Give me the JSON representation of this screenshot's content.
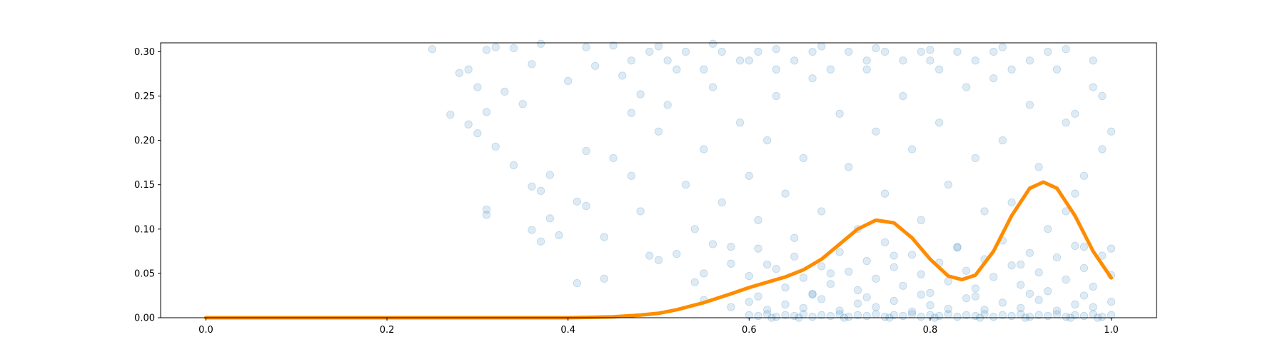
{
  "chart_data": {
    "type": "scatter",
    "title": "",
    "xlabel": "",
    "ylabel": "",
    "xlim": [
      -0.05,
      1.05
    ],
    "ylim": [
      0.0,
      0.31
    ],
    "x_ticks": [
      {
        "value": 0.0,
        "label": "0.0"
      },
      {
        "value": 0.2,
        "label": "0.2"
      },
      {
        "value": 0.4,
        "label": "0.4"
      },
      {
        "value": 0.6,
        "label": "0.6"
      },
      {
        "value": 0.8,
        "label": "0.8"
      },
      {
        "value": 1.0,
        "label": "1.0"
      }
    ],
    "y_ticks": [
      {
        "value": 0.0,
        "label": "0.00"
      },
      {
        "value": 0.05,
        "label": "0.05"
      },
      {
        "value": 0.1,
        "label": "0.10"
      },
      {
        "value": 0.15,
        "label": "0.15"
      },
      {
        "value": 0.2,
        "label": "0.20"
      },
      {
        "value": 0.25,
        "label": "0.25"
      },
      {
        "value": 0.3,
        "label": "0.30"
      }
    ],
    "grid": false,
    "legend": "none",
    "series": [
      {
        "kind": "scatter",
        "color": "#1f77b4",
        "opacity": 0.15,
        "points": [
          [
            0.25,
            0.303
          ],
          [
            0.28,
            0.276
          ],
          [
            0.29,
            0.28
          ],
          [
            0.31,
            0.302
          ],
          [
            0.32,
            0.305
          ],
          [
            0.34,
            0.304
          ],
          [
            0.37,
            0.309
          ],
          [
            0.42,
            0.305
          ],
          [
            0.45,
            0.307
          ],
          [
            0.5,
            0.306
          ],
          [
            0.56,
            0.309
          ],
          [
            0.63,
            0.303
          ],
          [
            0.68,
            0.306
          ],
          [
            0.74,
            0.304
          ],
          [
            0.8,
            0.302
          ],
          [
            0.88,
            0.305
          ],
          [
            0.95,
            0.303
          ],
          [
            0.27,
            0.229
          ],
          [
            0.3,
            0.26
          ],
          [
            0.31,
            0.232
          ],
          [
            0.33,
            0.255
          ],
          [
            0.35,
            0.241
          ],
          [
            0.36,
            0.286
          ],
          [
            0.29,
            0.218
          ],
          [
            0.3,
            0.208
          ],
          [
            0.32,
            0.193
          ],
          [
            0.34,
            0.172
          ],
          [
            0.36,
            0.148
          ],
          [
            0.37,
            0.143
          ],
          [
            0.38,
            0.161
          ],
          [
            0.36,
            0.099
          ],
          [
            0.37,
            0.086
          ],
          [
            0.31,
            0.116
          ],
          [
            0.31,
            0.122
          ],
          [
            0.38,
            0.112
          ],
          [
            0.39,
            0.093
          ],
          [
            0.41,
            0.131
          ],
          [
            0.42,
            0.126
          ],
          [
            0.44,
            0.091
          ],
          [
            0.44,
            0.044
          ],
          [
            0.41,
            0.039
          ],
          [
            0.42,
            0.188
          ],
          [
            0.4,
            0.267
          ],
          [
            0.43,
            0.284
          ],
          [
            0.46,
            0.273
          ],
          [
            0.48,
            0.252
          ],
          [
            0.47,
            0.231
          ],
          [
            0.45,
            0.18
          ],
          [
            0.47,
            0.16
          ],
          [
            0.48,
            0.12
          ],
          [
            0.49,
            0.07
          ],
          [
            0.5,
            0.21
          ],
          [
            0.51,
            0.24
          ],
          [
            0.52,
            0.28
          ],
          [
            0.53,
            0.15
          ],
          [
            0.54,
            0.1
          ],
          [
            0.55,
            0.05
          ],
          [
            0.55,
            0.19
          ],
          [
            0.56,
            0.26
          ],
          [
            0.57,
            0.13
          ],
          [
            0.58,
            0.08
          ],
          [
            0.59,
            0.22
          ],
          [
            0.6,
            0.29
          ],
          [
            0.6,
            0.16
          ],
          [
            0.61,
            0.11
          ],
          [
            0.62,
            0.06
          ],
          [
            0.62,
            0.2
          ],
          [
            0.63,
            0.25
          ],
          [
            0.64,
            0.14
          ],
          [
            0.65,
            0.09
          ],
          [
            0.66,
            0.18
          ],
          [
            0.67,
            0.27
          ],
          [
            0.68,
            0.12
          ],
          [
            0.69,
            0.05
          ],
          [
            0.7,
            0.23
          ],
          [
            0.71,
            0.17
          ],
          [
            0.72,
            0.1
          ],
          [
            0.73,
            0.28
          ],
          [
            0.74,
            0.21
          ],
          [
            0.75,
            0.14
          ],
          [
            0.76,
            0.07
          ],
          [
            0.77,
            0.25
          ],
          [
            0.78,
            0.19
          ],
          [
            0.79,
            0.11
          ],
          [
            0.8,
            0.29
          ],
          [
            0.81,
            0.22
          ],
          [
            0.82,
            0.15
          ],
          [
            0.83,
            0.08
          ],
          [
            0.84,
            0.26
          ],
          [
            0.85,
            0.18
          ],
          [
            0.86,
            0.12
          ],
          [
            0.87,
            0.27
          ],
          [
            0.88,
            0.2
          ],
          [
            0.89,
            0.13
          ],
          [
            0.9,
            0.06
          ],
          [
            0.91,
            0.24
          ],
          [
            0.92,
            0.17
          ],
          [
            0.93,
            0.1
          ],
          [
            0.94,
            0.28
          ],
          [
            0.95,
            0.22
          ],
          [
            0.96,
            0.14
          ],
          [
            0.97,
            0.08
          ],
          [
            0.98,
            0.26
          ],
          [
            0.99,
            0.19
          ],
          [
            1.0,
            0.21
          ],
          [
            0.99,
            0.25
          ],
          [
            0.98,
            0.29
          ],
          [
            0.97,
            0.16
          ],
          [
            0.96,
            0.23
          ],
          [
            0.95,
            0.12
          ],
          [
            0.93,
            0.3
          ],
          [
            0.91,
            0.29
          ],
          [
            0.89,
            0.28
          ],
          [
            0.87,
            0.3
          ],
          [
            0.85,
            0.29
          ],
          [
            0.83,
            0.3
          ],
          [
            0.81,
            0.28
          ],
          [
            0.79,
            0.3
          ],
          [
            0.77,
            0.29
          ],
          [
            0.75,
            0.3
          ],
          [
            0.73,
            0.29
          ],
          [
            0.71,
            0.3
          ],
          [
            0.69,
            0.28
          ],
          [
            0.67,
            0.3
          ],
          [
            0.65,
            0.29
          ],
          [
            0.63,
            0.28
          ],
          [
            0.61,
            0.3
          ],
          [
            0.59,
            0.29
          ],
          [
            0.57,
            0.3
          ],
          [
            0.55,
            0.28
          ],
          [
            0.53,
            0.3
          ],
          [
            0.51,
            0.29
          ],
          [
            0.49,
            0.3
          ],
          [
            0.47,
            0.29
          ],
          [
            0.5,
            0.065
          ],
          [
            0.52,
            0.072
          ],
          [
            0.54,
            0.04
          ],
          [
            0.56,
            0.083
          ],
          [
            0.58,
            0.061
          ],
          [
            0.6,
            0.047
          ],
          [
            0.61,
            0.078
          ],
          [
            0.63,
            0.055
          ],
          [
            0.64,
            0.034
          ],
          [
            0.65,
            0.069
          ],
          [
            0.66,
            0.045
          ],
          [
            0.67,
            0.026
          ],
          [
            0.68,
            0.058
          ],
          [
            0.69,
            0.038
          ],
          [
            0.7,
            0.074
          ],
          [
            0.71,
            0.052
          ],
          [
            0.72,
            0.031
          ],
          [
            0.73,
            0.064
          ],
          [
            0.74,
            0.044
          ],
          [
            0.75,
            0.085
          ],
          [
            0.76,
            0.057
          ],
          [
            0.77,
            0.036
          ],
          [
            0.78,
            0.071
          ],
          [
            0.79,
            0.049
          ],
          [
            0.8,
            0.028
          ],
          [
            0.81,
            0.062
          ],
          [
            0.82,
            0.041
          ],
          [
            0.83,
            0.079
          ],
          [
            0.84,
            0.053
          ],
          [
            0.85,
            0.033
          ],
          [
            0.86,
            0.066
          ],
          [
            0.87,
            0.046
          ],
          [
            0.88,
            0.087
          ],
          [
            0.89,
            0.059
          ],
          [
            0.9,
            0.037
          ],
          [
            0.91,
            0.073
          ],
          [
            0.92,
            0.051
          ],
          [
            0.93,
            0.03
          ],
          [
            0.94,
            0.068
          ],
          [
            0.95,
            0.043
          ],
          [
            0.96,
            0.081
          ],
          [
            0.97,
            0.056
          ],
          [
            0.98,
            0.035
          ],
          [
            0.99,
            0.07
          ],
          [
            1.0,
            0.048
          ],
          [
            1.0,
            0.078
          ],
          [
            0.55,
            0.02
          ],
          [
            0.58,
            0.012
          ],
          [
            0.6,
            0.018
          ],
          [
            0.62,
            0.009
          ],
          [
            0.64,
            0.015
          ],
          [
            0.66,
            0.011
          ],
          [
            0.68,
            0.021
          ],
          [
            0.7,
            0.008
          ],
          [
            0.72,
            0.016
          ],
          [
            0.74,
            0.012
          ],
          [
            0.76,
            0.019
          ],
          [
            0.78,
            0.007
          ],
          [
            0.8,
            0.014
          ],
          [
            0.82,
            0.01
          ],
          [
            0.84,
            0.022
          ],
          [
            0.86,
            0.009
          ],
          [
            0.88,
            0.017
          ],
          [
            0.9,
            0.011
          ],
          [
            0.92,
            0.02
          ],
          [
            0.94,
            0.008
          ],
          [
            0.96,
            0.015
          ],
          [
            0.98,
            0.012
          ],
          [
            1.0,
            0.018
          ],
          [
            0.61,
            0.024
          ],
          [
            0.67,
            0.027
          ],
          [
            0.73,
            0.023
          ],
          [
            0.79,
            0.026
          ],
          [
            0.85,
            0.024
          ],
          [
            0.91,
            0.027
          ],
          [
            0.97,
            0.025
          ],
          [
            0.6,
            0.003
          ],
          [
            0.61,
            0.002
          ],
          [
            0.62,
            0.004
          ],
          [
            0.63,
            0.001
          ],
          [
            0.64,
            0.003
          ],
          [
            0.65,
            0.002
          ],
          [
            0.66,
            0.004
          ],
          [
            0.67,
            0.001
          ],
          [
            0.68,
            0.003
          ],
          [
            0.69,
            0.002
          ],
          [
            0.7,
            0.004
          ],
          [
            0.71,
            0.001
          ],
          [
            0.72,
            0.003
          ],
          [
            0.73,
            0.002
          ],
          [
            0.74,
            0.004
          ],
          [
            0.75,
            0.001
          ],
          [
            0.76,
            0.003
          ],
          [
            0.77,
            0.002
          ],
          [
            0.78,
            0.004
          ],
          [
            0.79,
            0.001
          ],
          [
            0.8,
            0.003
          ],
          [
            0.81,
            0.002
          ],
          [
            0.82,
            0.004
          ],
          [
            0.83,
            0.001
          ],
          [
            0.84,
            0.003
          ],
          [
            0.85,
            0.002
          ],
          [
            0.86,
            0.004
          ],
          [
            0.87,
            0.001
          ],
          [
            0.88,
            0.003
          ],
          [
            0.89,
            0.002
          ],
          [
            0.9,
            0.004
          ],
          [
            0.91,
            0.001
          ],
          [
            0.92,
            0.003
          ],
          [
            0.93,
            0.002
          ],
          [
            0.94,
            0.004
          ],
          [
            0.95,
            0.001
          ],
          [
            0.96,
            0.003
          ],
          [
            0.97,
            0.002
          ],
          [
            0.98,
            0.004
          ],
          [
            0.99,
            0.001
          ],
          [
            1.0,
            0.003
          ],
          [
            0.625,
            0.0
          ],
          [
            0.655,
            0.0
          ],
          [
            0.705,
            0.0
          ],
          [
            0.755,
            0.0
          ],
          [
            0.805,
            0.0
          ],
          [
            0.855,
            0.0
          ],
          [
            0.905,
            0.0
          ],
          [
            0.955,
            0.0
          ],
          [
            0.985,
            0.0
          ]
        ]
      },
      {
        "kind": "line",
        "color": "#ff8c00",
        "points": [
          [
            0.0,
            0.0
          ],
          [
            0.1,
            0.0
          ],
          [
            0.2,
            0.0
          ],
          [
            0.3,
            0.0
          ],
          [
            0.4,
            0.0
          ],
          [
            0.45,
            0.001
          ],
          [
            0.48,
            0.003
          ],
          [
            0.5,
            0.005
          ],
          [
            0.52,
            0.009
          ],
          [
            0.55,
            0.017
          ],
          [
            0.58,
            0.027
          ],
          [
            0.6,
            0.034
          ],
          [
            0.62,
            0.04
          ],
          [
            0.64,
            0.046
          ],
          [
            0.66,
            0.054
          ],
          [
            0.68,
            0.066
          ],
          [
            0.7,
            0.083
          ],
          [
            0.72,
            0.1
          ],
          [
            0.74,
            0.11
          ],
          [
            0.76,
            0.107
          ],
          [
            0.78,
            0.09
          ],
          [
            0.8,
            0.066
          ],
          [
            0.82,
            0.047
          ],
          [
            0.835,
            0.043
          ],
          [
            0.85,
            0.048
          ],
          [
            0.87,
            0.075
          ],
          [
            0.89,
            0.115
          ],
          [
            0.91,
            0.146
          ],
          [
            0.925,
            0.153
          ],
          [
            0.94,
            0.146
          ],
          [
            0.96,
            0.115
          ],
          [
            0.98,
            0.075
          ],
          [
            1.0,
            0.045
          ]
        ]
      }
    ]
  }
}
